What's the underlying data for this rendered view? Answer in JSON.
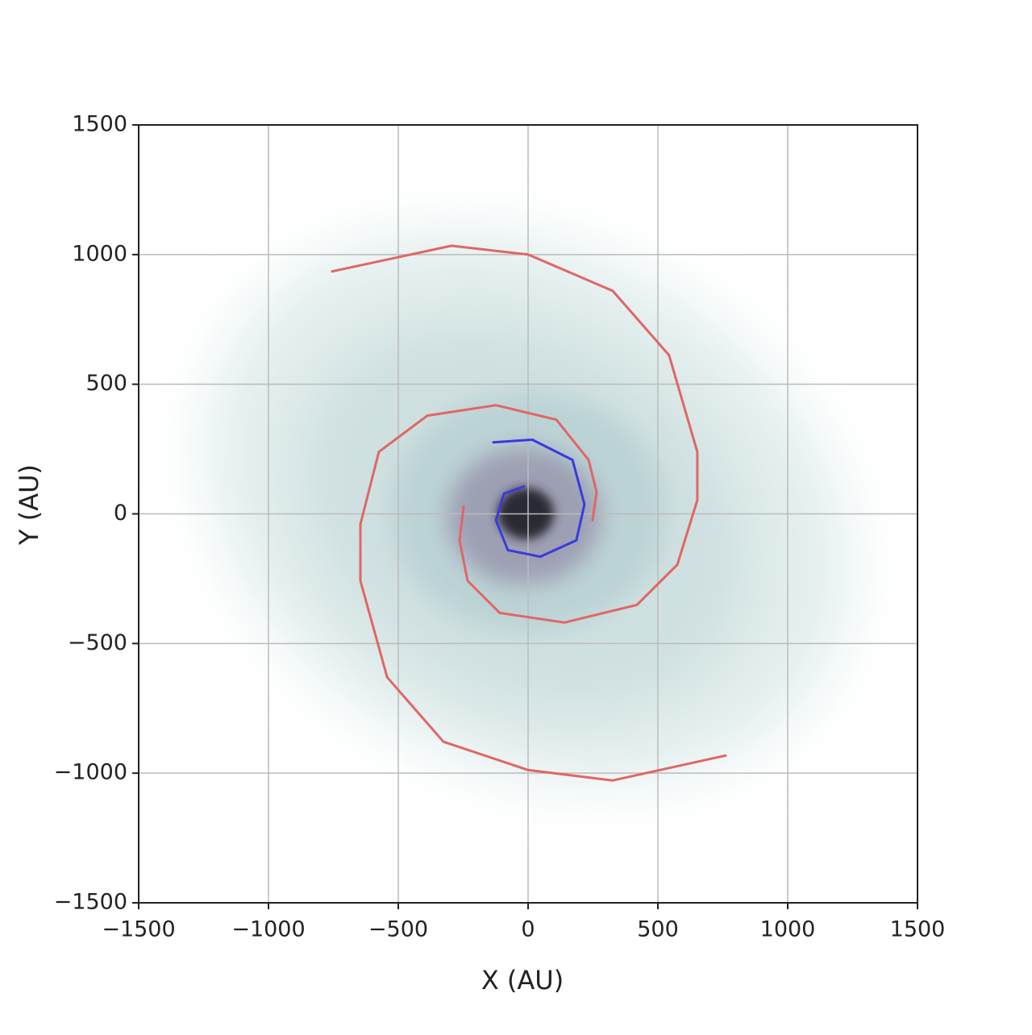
{
  "chart_data": {
    "type": "line",
    "xlabel": "X (AU)",
    "ylabel": "Y (AU)",
    "xlim": [
      -1500,
      1500
    ],
    "ylim": [
      -1500,
      1500
    ],
    "xticks": [
      {
        "value": -1500,
        "label": "−1500"
      },
      {
        "value": -1000,
        "label": "−1000"
      },
      {
        "value": -500,
        "label": "−500"
      },
      0,
      500,
      1000,
      1500
    ],
    "yticks": [
      {
        "value": -1500,
        "label": "−1500"
      },
      {
        "value": -1000,
        "label": "−1000"
      },
      {
        "value": -500,
        "label": "−500"
      },
      0,
      500,
      1000,
      1500
    ],
    "grid": true,
    "series": [
      {
        "color": "#e06666",
        "x": [
          -755,
          -295,
          0,
          326,
          543,
          652,
          652,
          575,
          419,
          140,
          -109,
          -233,
          -264,
          -248
        ],
        "values": [
          935,
          1034,
          1000,
          860,
          612,
          239,
          53,
          -196,
          -351,
          -419,
          -382,
          -258,
          -102,
          28
        ]
      },
      {
        "color": "#e06666",
        "x": [
          761,
          326,
          0,
          -326,
          -543,
          -646,
          -646,
          -575,
          -388,
          -124,
          109,
          233,
          264,
          248
        ],
        "values": [
          -932,
          -1028,
          -988,
          -879,
          -630,
          -258,
          -40,
          239,
          379,
          419,
          363,
          208,
          84,
          -25
        ]
      },
      {
        "color": "#3a3ae0",
        "x": [
          -134,
          16,
          171,
          217,
          186,
          47,
          -78,
          -124,
          -93,
          -16
        ],
        "values": [
          276,
          286,
          208,
          37,
          -102,
          -165,
          -140,
          -25,
          78,
          106
        ]
      }
    ]
  }
}
